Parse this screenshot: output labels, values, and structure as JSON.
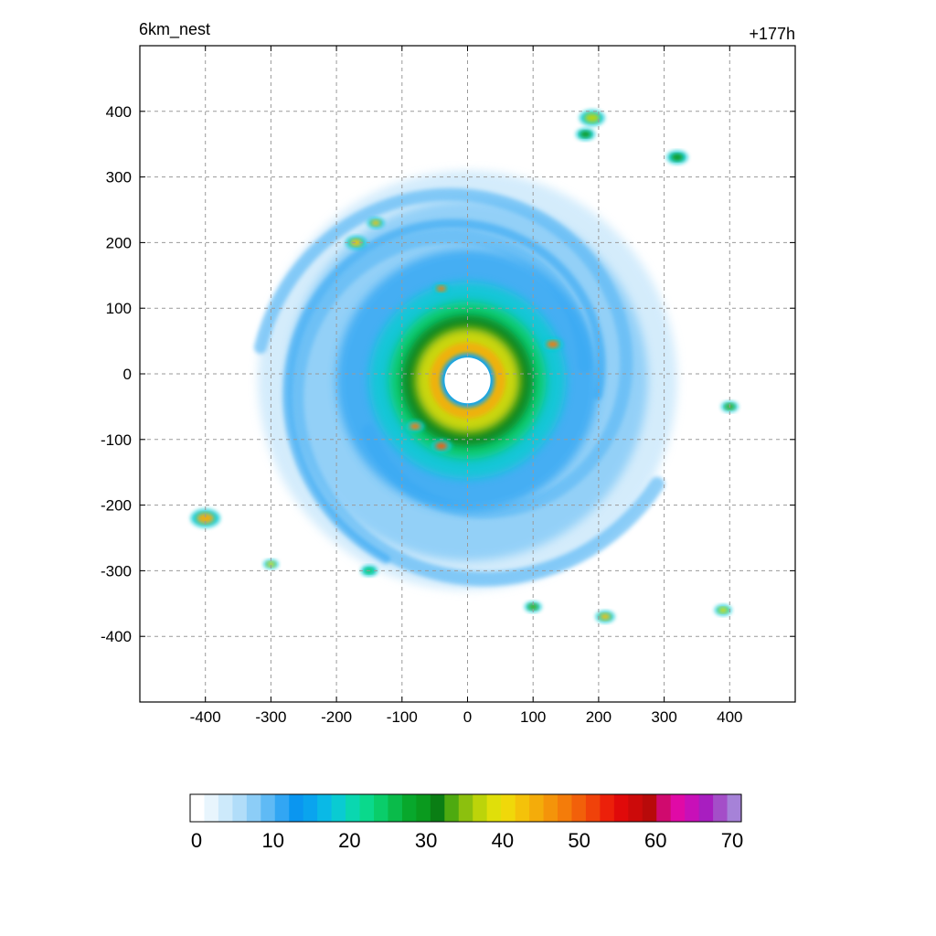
{
  "header": {
    "title_left": "6km_nest",
    "title_right": "+177h"
  },
  "chart_data": {
    "type": "heatmap",
    "title": "6km_nest",
    "subtitle": "+177h",
    "xlabel": "",
    "ylabel": "",
    "xlim": [
      -500,
      500
    ],
    "ylim": [
      -500,
      500
    ],
    "x_ticks": [
      -400,
      -300,
      -200,
      -100,
      0,
      100,
      200,
      300,
      400
    ],
    "y_ticks": [
      400,
      300,
      200,
      100,
      0,
      -100,
      -200,
      -300,
      -400
    ],
    "grid": true,
    "grid_style": "dashed",
    "field": {
      "structure": "tropical-cyclone",
      "eye_center": [
        0,
        -10
      ],
      "eye_radius": 35,
      "eyewall_peak_value": 50,
      "inner_core_radius": 150,
      "outer_extent_radius": 320,
      "spiral_rainbands": true
    },
    "colorbar": {
      "orientation": "horizontal",
      "min": 0,
      "max": 70,
      "step": 2,
      "tick_values": [
        0,
        10,
        20,
        30,
        40,
        50,
        60,
        70
      ],
      "colors": [
        "#ffffff",
        "#e8f5fd",
        "#cdeafb",
        "#b1ddf9",
        "#8ccdf7",
        "#5fbaf5",
        "#32a6f3",
        "#0a96f0",
        "#0aa4ee",
        "#0ab9e6",
        "#0acbd2",
        "#0ad7b0",
        "#0ad98c",
        "#0acd6a",
        "#0abb4a",
        "#08a82c",
        "#0a9a1e",
        "#0a7e14",
        "#4eaa10",
        "#8cc00e",
        "#bcd40a",
        "#e0df0a",
        "#f0d80a",
        "#f4c20a",
        "#f4ac0a",
        "#f4940a",
        "#f47c0a",
        "#f2600a",
        "#f0420a",
        "#ec200a",
        "#e00a0a",
        "#cc0a0a",
        "#b80a0a",
        "#d00a6e",
        "#e00aa6",
        "#c810b8",
        "#a81ec0",
        "#a44ec8",
        "#a682d8"
      ]
    }
  }
}
